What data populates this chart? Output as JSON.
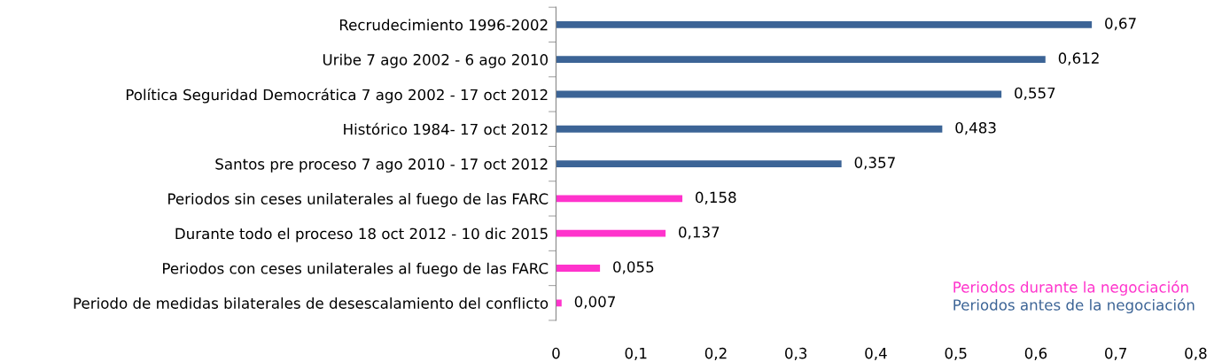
{
  "chart_data": {
    "type": "bar",
    "orientation": "horizontal",
    "categories": [
      "Recrudecimiento 1996-2002",
      "Uribe 7 ago 2002 - 6 ago 2010",
      "Política Seguridad Democrática 7 ago 2002 - 17 oct 2012",
      "Histórico 1984- 17 oct 2012",
      "Santos pre proceso 7 ago 2010 - 17 oct 2012",
      "Periodos sin ceses unilaterales al fuego de las FARC",
      "Durante todo el proceso 18 oct 2012 - 10 dic 2015",
      "Periodos con ceses unilaterales al fuego de las FARC",
      "Periodo de medidas bilaterales de desescalamiento del conflicto"
    ],
    "series": [
      {
        "name": "Periodos durante la negociación",
        "color": "#ff33cc",
        "values": [
          null,
          null,
          null,
          null,
          null,
          0.158,
          0.137,
          0.055,
          0.007
        ],
        "value_labels": [
          null,
          null,
          null,
          null,
          null,
          "0,158",
          "0,137",
          "0,055",
          "0,007"
        ]
      },
      {
        "name": "Periodos antes de la negociación",
        "color": "#3c6496",
        "values": [
          0.67,
          0.612,
          0.557,
          0.483,
          0.357,
          null,
          null,
          null,
          null
        ],
        "value_labels": [
          "0,67",
          "0,612",
          "0,557",
          "0,483",
          "0,357",
          null,
          null,
          null,
          null
        ]
      }
    ],
    "xlim": [
      0,
      0.8
    ],
    "xticks": [
      0,
      {
        "value": 0.1,
        "label": "0,1"
      },
      {
        "value": 0.2,
        "label": "0,2"
      },
      {
        "value": 0.3,
        "label": "0,3"
      },
      {
        "value": 0.4,
        "label": "0,4"
      },
      {
        "value": 0.5,
        "label": "0,5"
      },
      {
        "value": 0.6,
        "label": "0,6"
      },
      {
        "value": 0.7,
        "label": "0,7"
      },
      {
        "value": 0.8,
        "label": "0,8"
      }
    ],
    "grid": false,
    "legend": "bottom right"
  }
}
